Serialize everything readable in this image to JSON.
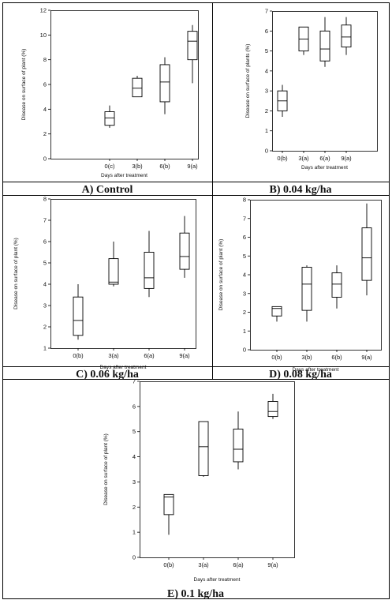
{
  "figure": {
    "panels": [
      {
        "caption": "A) Control"
      },
      {
        "caption": "B) 0.04 kg/ha"
      },
      {
        "caption": "C) 0.06 kg/ha"
      },
      {
        "caption": "D) 0.08 kg/ha"
      },
      {
        "caption": "E)  0.1 kg/ha"
      }
    ]
  },
  "chart_data": [
    {
      "type": "box",
      "title": "A) Control",
      "xlabel": "Days after treatment",
      "ylabel": "Disease on surface of plant (%)",
      "categories": [
        "0(c)",
        "3(b)",
        "6(b)",
        "9(a)"
      ],
      "ylim": [
        0,
        12
      ],
      "yticks": [
        0,
        2,
        4,
        6,
        8,
        10,
        12
      ],
      "boxes": [
        {
          "min": 2.5,
          "q1": 2.7,
          "median": 3.3,
          "q3": 3.8,
          "max": 4.3
        },
        {
          "min": 5.0,
          "q1": 5.0,
          "median": 5.7,
          "q3": 6.5,
          "max": 6.7
        },
        {
          "min": 3.6,
          "q1": 4.6,
          "median": 6.2,
          "q3": 7.6,
          "max": 8.2
        },
        {
          "min": 6.1,
          "q1": 8.0,
          "median": 9.5,
          "q3": 10.3,
          "max": 10.8
        }
      ]
    },
    {
      "type": "box",
      "title": "B) 0.04 kg/ha",
      "xlabel": "Days after treatment",
      "ylabel": "Disease on surface of plants (%)",
      "categories": [
        "0(b)",
        "3(a)",
        "6(a)",
        "9(a)"
      ],
      "ylim": [
        0,
        7
      ],
      "yticks": [
        0,
        1,
        2,
        3,
        4,
        5,
        6,
        7
      ],
      "boxes": [
        {
          "min": 1.7,
          "q1": 2.0,
          "median": 2.5,
          "q3": 3.0,
          "max": 3.3
        },
        {
          "min": 4.8,
          "q1": 5.0,
          "median": 5.6,
          "q3": 6.2,
          "max": 6.2
        },
        {
          "min": 4.2,
          "q1": 4.5,
          "median": 5.1,
          "q3": 6.0,
          "max": 6.7
        },
        {
          "min": 4.8,
          "q1": 5.2,
          "median": 5.7,
          "q3": 6.3,
          "max": 6.7
        }
      ]
    },
    {
      "type": "box",
      "title": "C) 0.06 kg/ha",
      "xlabel": "Days after treatment",
      "ylabel": "Disease on surface of plant (%)",
      "categories": [
        "0(b)",
        "3(a)",
        "6(a)",
        "9(a)"
      ],
      "ylim": [
        1,
        8
      ],
      "yticks": [
        1,
        2,
        3,
        4,
        5,
        6,
        7,
        8
      ],
      "boxes": [
        {
          "min": 1.4,
          "q1": 1.6,
          "median": 2.3,
          "q3": 3.4,
          "max": 4.0
        },
        {
          "min": 3.9,
          "q1": 4.0,
          "median": 4.1,
          "q3": 5.2,
          "max": 6.0
        },
        {
          "min": 3.4,
          "q1": 3.8,
          "median": 4.3,
          "q3": 5.5,
          "max": 6.5
        },
        {
          "min": 4.3,
          "q1": 4.7,
          "median": 5.3,
          "q3": 6.4,
          "max": 7.2
        }
      ]
    },
    {
      "type": "box",
      "title": "D) 0.08 kg/ha",
      "xlabel": "Days after treatment",
      "ylabel": "Disease on surface of plant (%)",
      "categories": [
        "0(b)",
        "3(b)",
        "6(b)",
        "9(a)"
      ],
      "ylim": [
        0,
        8
      ],
      "yticks": [
        0,
        1,
        2,
        3,
        4,
        5,
        6,
        7,
        8
      ],
      "boxes": [
        {
          "min": 1.5,
          "q1": 1.8,
          "median": 2.2,
          "q3": 2.3,
          "max": 2.3
        },
        {
          "min": 1.5,
          "q1": 2.1,
          "median": 3.5,
          "q3": 4.4,
          "max": 4.5
        },
        {
          "min": 2.2,
          "q1": 2.8,
          "median": 3.5,
          "q3": 4.1,
          "max": 4.5
        },
        {
          "min": 2.9,
          "q1": 3.7,
          "median": 4.9,
          "q3": 6.5,
          "max": 7.8
        }
      ]
    },
    {
      "type": "box",
      "title": "E)  0.1 kg/ha",
      "xlabel": "Days after treatment",
      "ylabel": "Disease on surface of plant (%)",
      "categories": [
        "0(b)",
        "3(a)",
        "6(a)",
        "9(a)"
      ],
      "ylim": [
        0,
        7
      ],
      "yticks": [
        0,
        1,
        2,
        3,
        4,
        5,
        6,
        7
      ],
      "boxes": [
        {
          "min": 0.9,
          "q1": 1.7,
          "median": 2.4,
          "q3": 2.5,
          "max": 2.5
        },
        {
          "min": 3.2,
          "q1": 3.25,
          "median": 4.4,
          "q3": 5.4,
          "max": 5.4
        },
        {
          "min": 3.5,
          "q1": 3.8,
          "median": 4.3,
          "q3": 5.1,
          "max": 5.8
        },
        {
          "min": 5.5,
          "q1": 5.6,
          "median": 5.8,
          "q3": 6.2,
          "max": 6.5
        }
      ]
    }
  ]
}
